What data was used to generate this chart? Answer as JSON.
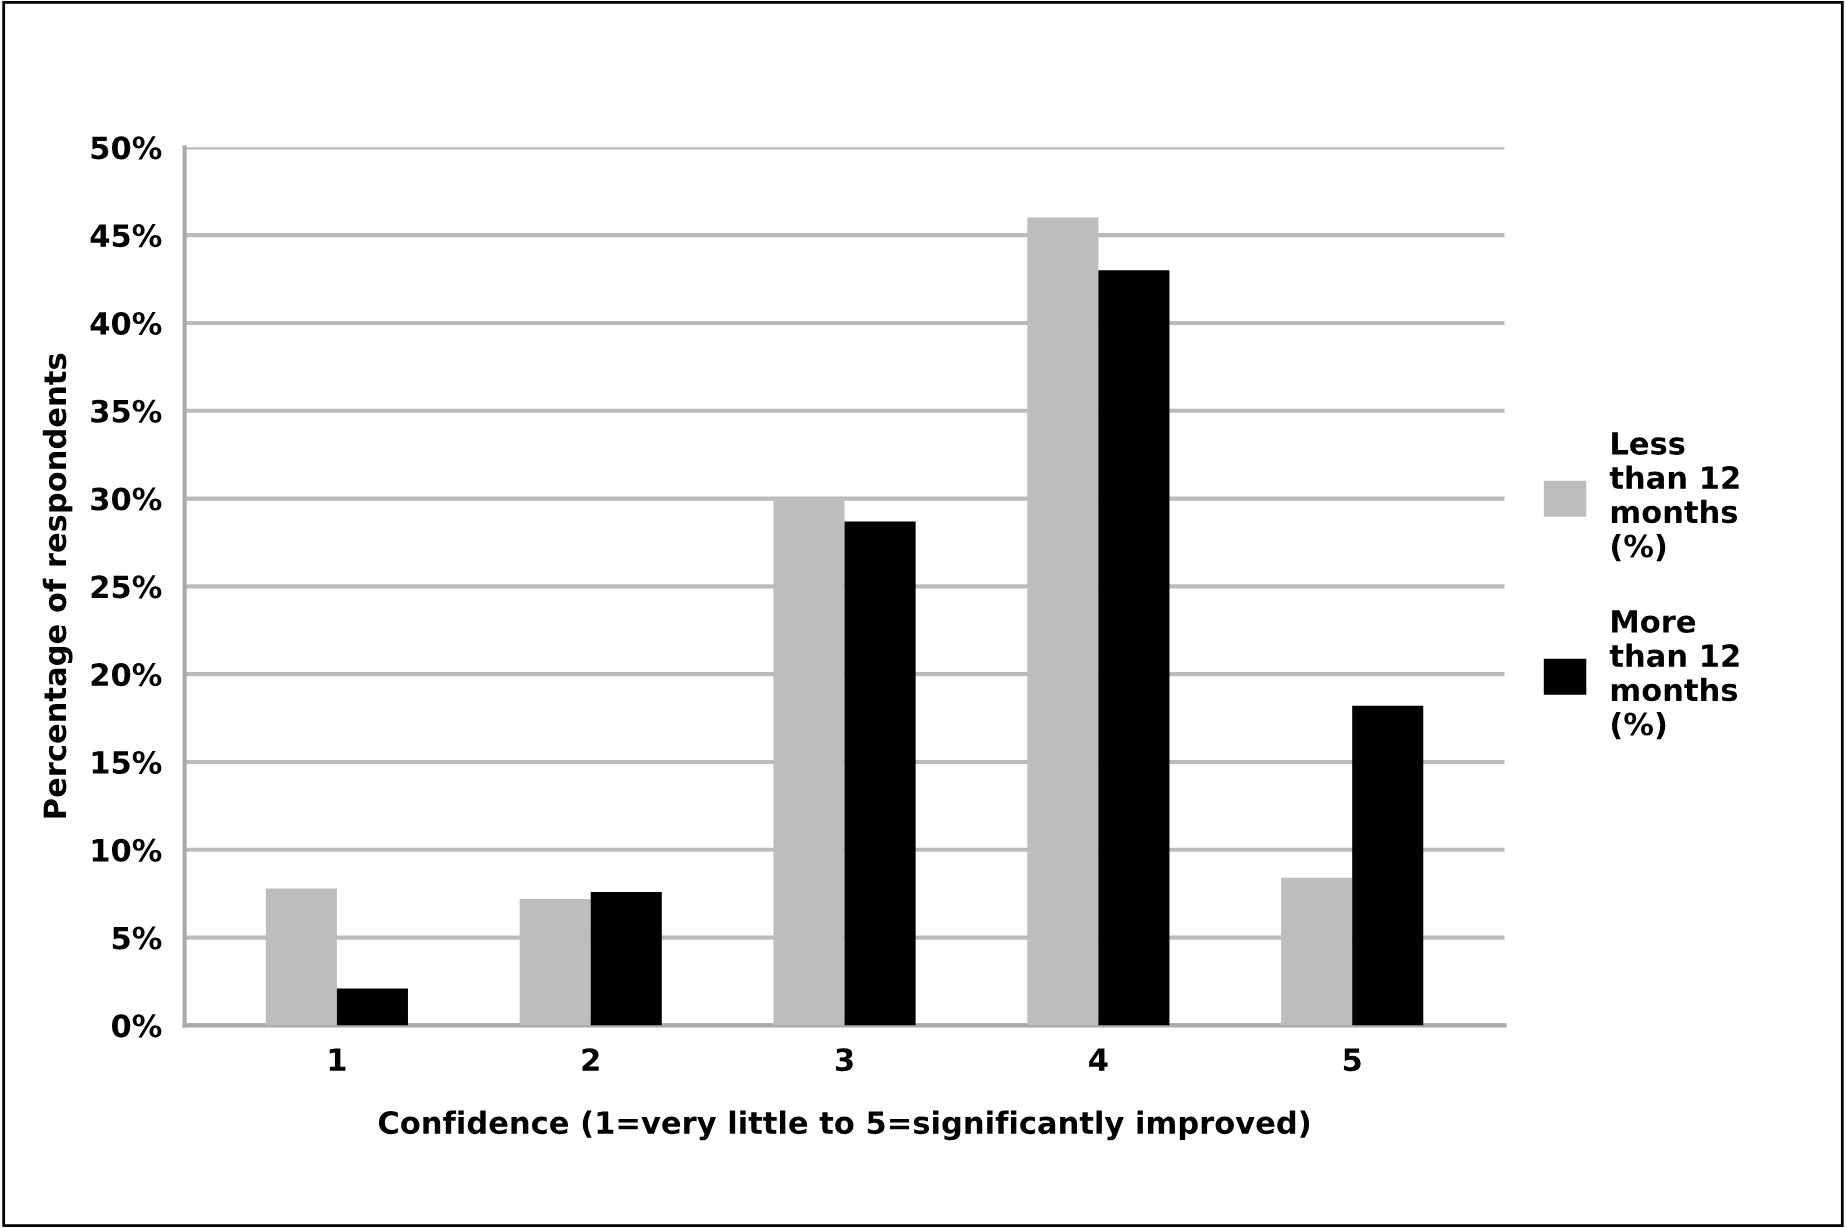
{
  "chart_data": {
    "type": "bar",
    "xlabel": "Confidence (1=very little to 5=significantly improved)",
    "ylabel": "Percentage of respondents",
    "categories": [
      "1",
      "2",
      "3",
      "4",
      "5"
    ],
    "series": [
      {
        "name": "Less than 12 months (%)",
        "color": "#bdbdbd",
        "values": [
          7.8,
          7.2,
          30,
          46,
          8.4
        ]
      },
      {
        "name": "More than 12 months (%)",
        "color": "#000000",
        "values": [
          2.1,
          7.6,
          28.7,
          43,
          18.2
        ]
      }
    ],
    "ylim": [
      0,
      50
    ],
    "yticks": [
      {
        "value": 0,
        "label": "0%"
      },
      {
        "value": 5,
        "label": "5%"
      },
      {
        "value": 10,
        "label": "10%"
      },
      {
        "value": 15,
        "label": "15%"
      },
      {
        "value": 20,
        "label": "20%"
      },
      {
        "value": 25,
        "label": "25%"
      },
      {
        "value": 30,
        "label": "30%"
      },
      {
        "value": 35,
        "label": "35%"
      },
      {
        "value": 40,
        "label": "40%"
      },
      {
        "value": 45,
        "label": "45%"
      },
      {
        "value": 50,
        "label": "50%"
      }
    ],
    "grid": "y",
    "legend": "right"
  }
}
